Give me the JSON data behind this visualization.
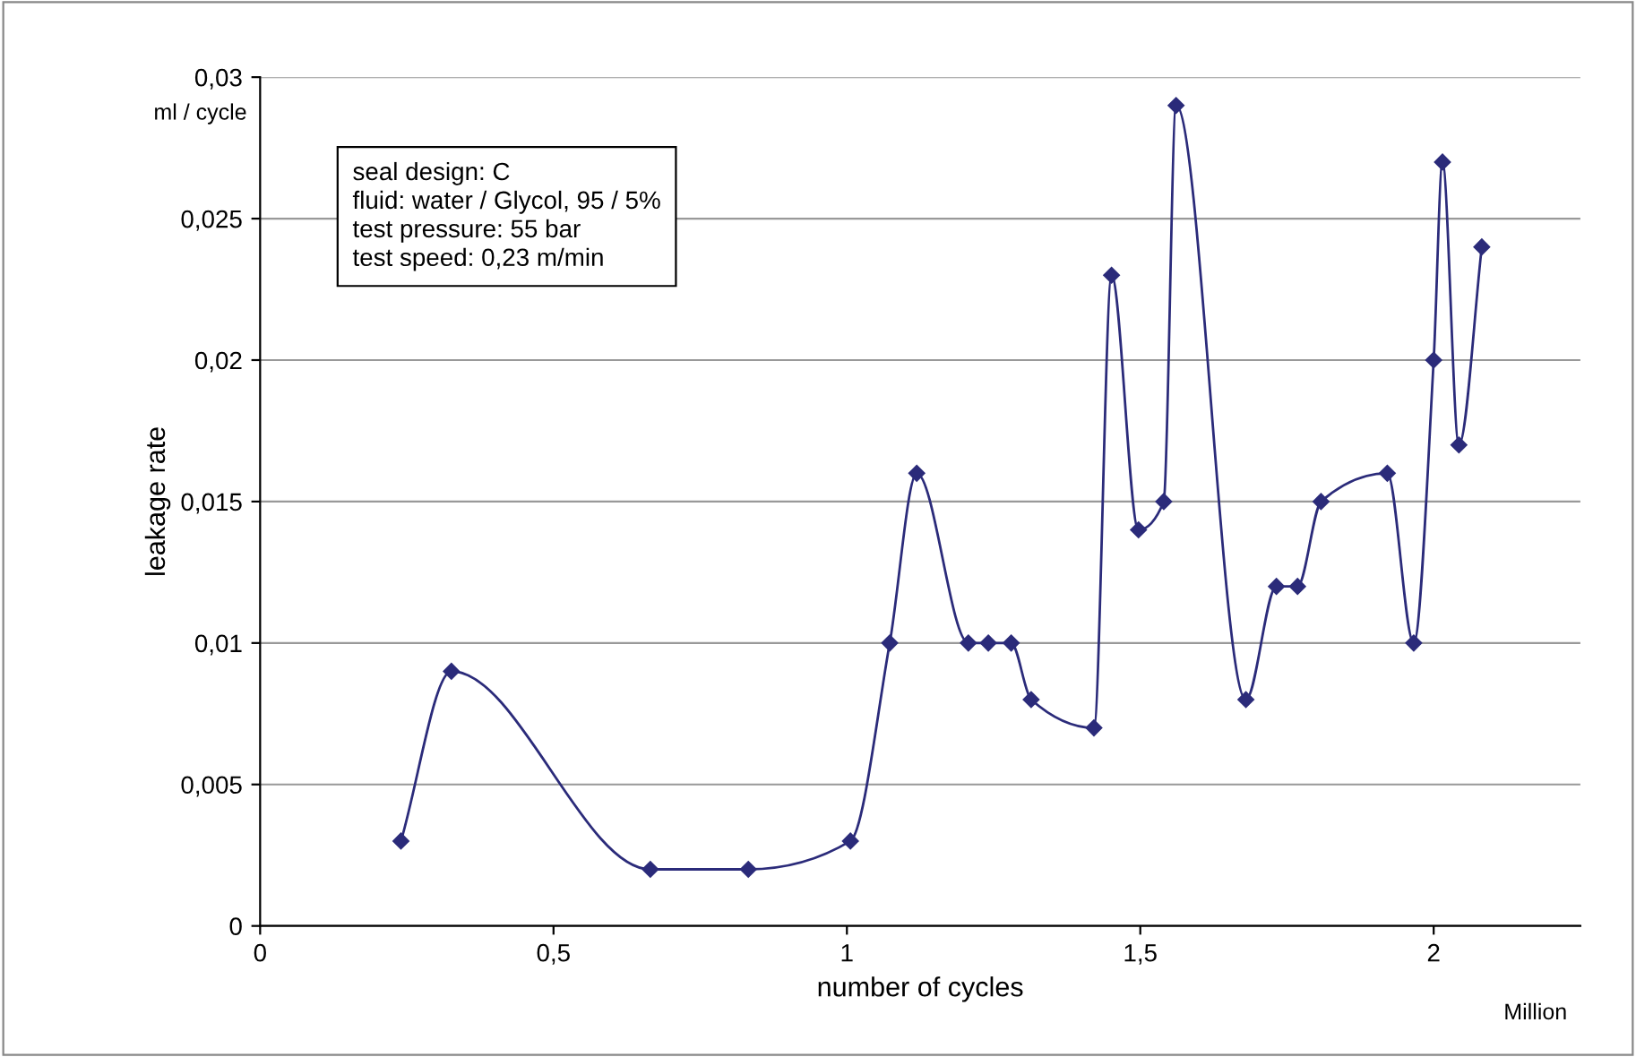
{
  "chart_data": {
    "type": "line",
    "xlabel": "number of cycles",
    "ylabel": "leakage rate",
    "annotations": [
      "ml / cycle",
      "Million",
      "seal design: C",
      "fluid: water / Glycol, 95 / 5%",
      "test pressure: 55 bar",
      "test speed: 0,23 m/min"
    ],
    "series": [
      {
        "color": "#2b2b7a",
        "x": [
          0.24,
          0.326,
          0.665,
          0.832,
          1.006,
          1.073,
          1.119,
          1.207,
          1.241,
          1.28,
          1.314,
          1.421,
          1.451,
          1.497,
          1.54,
          1.561,
          1.68,
          1.732,
          1.768,
          1.808,
          1.921,
          1.966,
          2.0,
          2.015,
          2.043,
          2.082
        ],
        "values": [
          0.003,
          0.009,
          0.002,
          0.002,
          0.003,
          0.01,
          0.016,
          0.01,
          0.01,
          0.01,
          0.008,
          0.007,
          0.023,
          0.014,
          0.015,
          0.029,
          0.008,
          0.012,
          0.012,
          0.015,
          0.016,
          0.01,
          0.02,
          0.027,
          0.017,
          0.024
        ]
      }
    ],
    "xlim": [
      0,
      2.25
    ],
    "xticks": [
      0,
      {
        "value": 0.5,
        "label": "0,5"
      },
      1,
      {
        "value": 1.5,
        "label": "1,5"
      },
      2
    ],
    "ylim": [
      0,
      0.03
    ],
    "yticks": [
      0,
      {
        "value": 0.005,
        "label": "0,005"
      },
      {
        "value": 0.01,
        "label": "0,01"
      },
      {
        "value": 0.015,
        "label": "0,015"
      },
      {
        "value": 0.02,
        "label": "0,02"
      },
      {
        "value": 0.025,
        "label": "0,025"
      },
      {
        "value": 0.03,
        "label": "0,03"
      }
    ],
    "grid": "y",
    "marker": "diamond",
    "line_style": "solid",
    "legend": false
  }
}
